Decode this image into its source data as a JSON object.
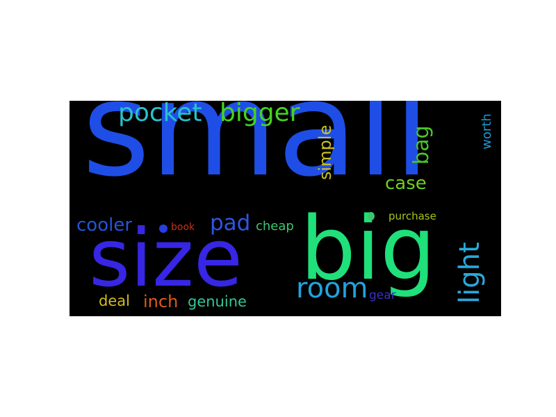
{
  "wordcloud": {
    "words": [
      {
        "id": "small",
        "text": "small",
        "color": "#1f4ee6"
      },
      {
        "id": "size",
        "text": "size",
        "color": "#3726e3"
      },
      {
        "id": "big",
        "text": "big",
        "color": "#1fe07a"
      },
      {
        "id": "pocket",
        "text": "pocket",
        "color": "#27c2cc"
      },
      {
        "id": "bigger",
        "text": "bigger",
        "color": "#45d41f"
      },
      {
        "id": "simple",
        "text": "simple",
        "color": "#c9c21f"
      },
      {
        "id": "bag",
        "text": "bag",
        "color": "#49c62a"
      },
      {
        "id": "case",
        "text": "case",
        "color": "#6ed021"
      },
      {
        "id": "worth",
        "text": "worth",
        "color": "#1c9ad6"
      },
      {
        "id": "cooler",
        "text": "cooler",
        "color": "#2355d9"
      },
      {
        "id": "book",
        "text": "book",
        "color": "#c0331c"
      },
      {
        "id": "pad",
        "text": "pad",
        "color": "#2f55e3"
      },
      {
        "id": "cheap",
        "text": "cheap",
        "color": "#3ac86d"
      },
      {
        "id": "purchase",
        "text": "purchase",
        "color": "#a8c21f"
      },
      {
        "id": "light",
        "text": "light",
        "color": "#2aa8dc"
      },
      {
        "id": "room",
        "text": "room",
        "color": "#22a3dc"
      },
      {
        "id": "deal",
        "text": "deal",
        "color": "#d3bd1f"
      },
      {
        "id": "inch",
        "text": "inch",
        "color": "#de5a1f"
      },
      {
        "id": "genuine",
        "text": "genuine",
        "color": "#31c89a"
      },
      {
        "id": "gear",
        "text": "gear",
        "color": "#3a2fc9"
      }
    ]
  }
}
